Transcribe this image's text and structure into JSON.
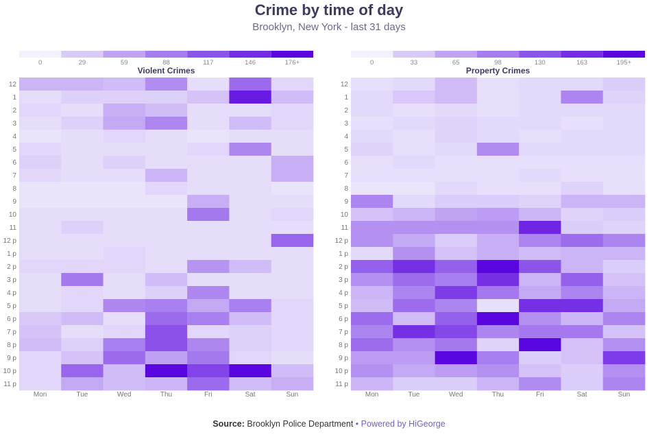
{
  "title": "Crime by time of day",
  "subtitle": "Brooklyn, New York - last 31 days",
  "footer": {
    "source_label": "Source:",
    "source_text": "Brooklyn Police Department",
    "separator": "•",
    "powered_by": "Powered by HiGeorge"
  },
  "colors": {
    "scale_low": "#f3f1fd",
    "scale_high": "#5a06e0",
    "title": "#3b3a63",
    "link": "#7a5ccf"
  },
  "chart_data": [
    {
      "type": "heatmap",
      "title": "Violent Crimes",
      "x_categories": [
        "Mon",
        "Tue",
        "Wed",
        "Thu",
        "Fri",
        "Sat",
        "Sun"
      ],
      "y_categories": [
        "12",
        "1",
        "2",
        "3",
        "4",
        "5",
        "6",
        "7",
        "8",
        "9",
        "10",
        "11",
        "12 p",
        "1 p",
        "2 p",
        "3 p",
        "4 p",
        "5 p",
        "6 p",
        "7 p",
        "8 p",
        "9 p",
        "10 p",
        "11 p"
      ],
      "legend_ticks": [
        "0",
        "29",
        "59",
        "88",
        "117",
        "146",
        "176+"
      ],
      "max": 176,
      "values": [
        [
          45,
          45,
          40,
          75,
          15,
          100,
          20
        ],
        [
          15,
          25,
          25,
          25,
          35,
          160,
          40
        ],
        [
          20,
          15,
          50,
          40,
          15,
          15,
          20
        ],
        [
          15,
          25,
          55,
          80,
          15,
          40,
          20
        ],
        [
          10,
          15,
          20,
          15,
          10,
          15,
          15
        ],
        [
          20,
          15,
          15,
          15,
          20,
          80,
          15
        ],
        [
          25,
          15,
          25,
          15,
          15,
          15,
          50
        ],
        [
          20,
          15,
          15,
          45,
          15,
          15,
          50
        ],
        [
          10,
          10,
          10,
          20,
          15,
          15,
          10
        ],
        [
          10,
          10,
          10,
          10,
          50,
          15,
          15
        ],
        [
          15,
          15,
          15,
          15,
          90,
          15,
          20
        ],
        [
          15,
          25,
          15,
          15,
          15,
          15,
          15
        ],
        [
          15,
          15,
          15,
          15,
          15,
          15,
          105
        ],
        [
          15,
          15,
          20,
          15,
          15,
          15,
          15
        ],
        [
          20,
          20,
          20,
          15,
          70,
          40,
          15
        ],
        [
          15,
          90,
          15,
          40,
          15,
          15,
          15
        ],
        [
          15,
          20,
          15,
          25,
          80,
          15,
          15
        ],
        [
          15,
          20,
          80,
          85,
          55,
          85,
          20
        ],
        [
          30,
          40,
          15,
          100,
          85,
          40,
          20
        ],
        [
          35,
          15,
          20,
          120,
          20,
          25,
          20
        ],
        [
          40,
          25,
          85,
          120,
          80,
          25,
          20
        ],
        [
          20,
          35,
          100,
          60,
          90,
          20,
          15
        ],
        [
          20,
          105,
          40,
          176,
          130,
          176,
          40
        ],
        [
          20,
          55,
          40,
          45,
          100,
          40,
          50
        ]
      ]
    },
    {
      "type": "heatmap",
      "title": "Property Crimes",
      "x_categories": [
        "Mon",
        "Tue",
        "Wed",
        "Thu",
        "Fri",
        "Sat",
        "Sun"
      ],
      "y_categories": [
        "12",
        "1",
        "2",
        "3",
        "4",
        "5",
        "6",
        "7",
        "8",
        "9",
        "10",
        "11",
        "12 p",
        "1 p",
        "2 p",
        "3 p",
        "4 p",
        "5 p",
        "6 p",
        "7 p",
        "8 p",
        "9 p",
        "10 p",
        "11 p"
      ],
      "legend_ticks": [
        "0",
        "33",
        "65",
        "98",
        "130",
        "163",
        "195+"
      ],
      "max": 195,
      "values": [
        [
          15,
          20,
          45,
          15,
          20,
          20,
          30
        ],
        [
          20,
          35,
          45,
          15,
          20,
          90,
          25
        ],
        [
          20,
          15,
          20,
          15,
          20,
          20,
          20
        ],
        [
          15,
          20,
          25,
          20,
          20,
          15,
          20
        ],
        [
          20,
          15,
          25,
          20,
          15,
          20,
          20
        ],
        [
          25,
          15,
          20,
          85,
          20,
          20,
          20
        ],
        [
          15,
          20,
          15,
          15,
          15,
          15,
          15
        ],
        [
          15,
          15,
          15,
          15,
          20,
          15,
          15
        ],
        [
          10,
          10,
          20,
          15,
          15,
          25,
          15
        ],
        [
          90,
          20,
          30,
          30,
          25,
          50,
          50
        ],
        [
          40,
          50,
          65,
          70,
          50,
          25,
          30
        ],
        [
          80,
          80,
          80,
          80,
          170,
          30,
          25
        ],
        [
          80,
          60,
          30,
          55,
          90,
          110,
          90
        ],
        [
          20,
          80,
          40,
          55,
          45,
          50,
          50
        ],
        [
          120,
          160,
          120,
          195,
          130,
          50,
          30
        ],
        [
          80,
          110,
          95,
          160,
          50,
          120,
          40
        ],
        [
          50,
          90,
          150,
          100,
          60,
          90,
          50
        ],
        [
          45,
          110,
          90,
          15,
          160,
          160,
          60
        ],
        [
          110,
          45,
          120,
          195,
          80,
          50,
          90
        ],
        [
          90,
          160,
          140,
          90,
          100,
          100,
          40
        ],
        [
          110,
          80,
          100,
          25,
          195,
          40,
          80
        ],
        [
          70,
          70,
          195,
          95,
          30,
          40,
          150
        ],
        [
          80,
          60,
          70,
          80,
          40,
          30,
          80
        ],
        [
          50,
          30,
          30,
          50,
          85,
          30,
          90
        ]
      ]
    }
  ]
}
